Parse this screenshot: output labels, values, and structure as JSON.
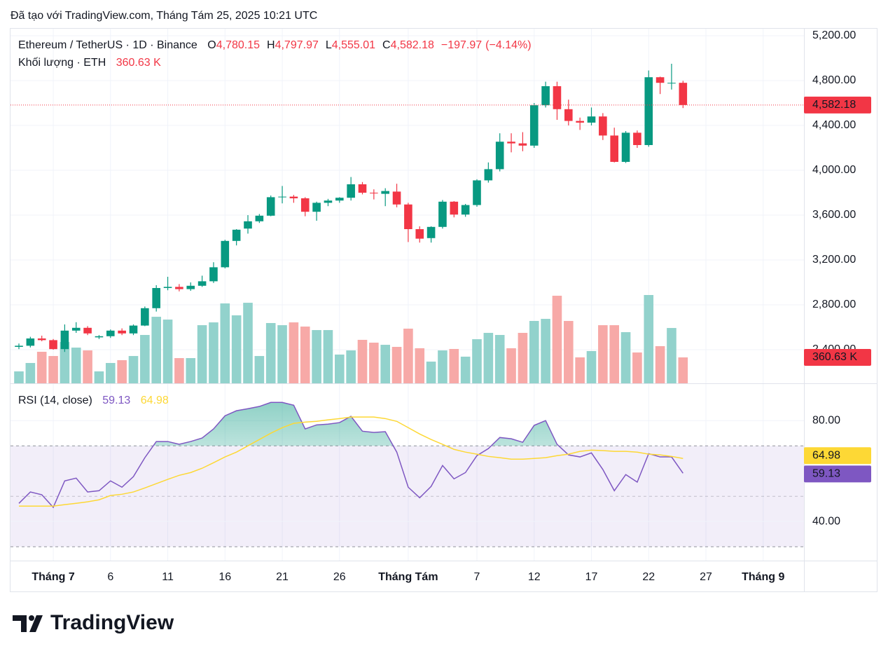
{
  "header": "Đã tạo với TradingView.com, Tháng Tám 25, 2025 10:21 UTC",
  "footer": "TradingView",
  "chart_data": {
    "type": "candlestick",
    "symbol": "Ethereum / TetherUS · 1D · Binance",
    "legend": [
      {
        "key": "O",
        "value": 4780.15,
        "label": "4,780.15"
      },
      {
        "key": "H",
        "value": 4797.97,
        "label": "4,797.97"
      },
      {
        "key": "L",
        "value": 4555.01,
        "label": "4,555.01"
      },
      {
        "key": "C",
        "value": 4582.18,
        "label": "4,582.18"
      }
    ],
    "change": {
      "value": -197.97,
      "label": "−197.97"
    },
    "change_pct": {
      "value": -4.14,
      "label": "(−4.14%)"
    },
    "up_color": "#089981",
    "down_color": "#f23645",
    "dates": [
      "2025-06-28",
      "2025-06-29",
      "2025-06-30",
      "2025-07-01",
      "2025-07-02",
      "2025-07-03",
      "2025-07-04",
      "2025-07-05",
      "2025-07-06",
      "2025-07-07",
      "2025-07-08",
      "2025-07-09",
      "2025-07-10",
      "2025-07-11",
      "2025-07-12",
      "2025-07-13",
      "2025-07-14",
      "2025-07-15",
      "2025-07-16",
      "2025-07-17",
      "2025-07-18",
      "2025-07-19",
      "2025-07-20",
      "2025-07-21",
      "2025-07-22",
      "2025-07-23",
      "2025-07-24",
      "2025-07-25",
      "2025-07-26",
      "2025-07-27",
      "2025-07-28",
      "2025-07-29",
      "2025-07-30",
      "2025-07-31",
      "2025-08-01",
      "2025-08-02",
      "2025-08-03",
      "2025-08-04",
      "2025-08-05",
      "2025-08-06",
      "2025-08-07",
      "2025-08-08",
      "2025-08-09",
      "2025-08-10",
      "2025-08-11",
      "2025-08-12",
      "2025-08-13",
      "2025-08-14",
      "2025-08-15",
      "2025-08-16",
      "2025-08-17",
      "2025-08-18",
      "2025-08-19",
      "2025-08-20",
      "2025-08-21",
      "2025-08-22",
      "2025-08-23",
      "2025-08-24",
      "2025-08-25"
    ],
    "open": [
      2425,
      2435,
      2500,
      2485,
      2405,
      2570,
      2595,
      2510,
      2520,
      2570,
      2545,
      2615,
      2770,
      2950,
      2960,
      2940,
      2970,
      3010,
      3135,
      3370,
      3480,
      3545,
      3595,
      3760,
      3765,
      3750,
      3630,
      3710,
      3730,
      3755,
      3875,
      3800,
      3790,
      3810,
      3695,
      3475,
      3395,
      3495,
      3720,
      3605,
      3690,
      3910,
      4010,
      4255,
      4240,
      4220,
      4580,
      4750,
      4545,
      4440,
      4425,
      4480,
      4310,
      4075,
      4335,
      4225,
      4830,
      4780,
      4780.15
    ],
    "high": [
      2455,
      2515,
      2525,
      2495,
      2625,
      2645,
      2610,
      2530,
      2580,
      2590,
      2625,
      2785,
      2975,
      3050,
      2985,
      3000,
      3060,
      3180,
      3380,
      3475,
      3600,
      3610,
      3775,
      3860,
      3780,
      3760,
      3720,
      3745,
      3760,
      3940,
      3895,
      3830,
      3840,
      3880,
      3710,
      3500,
      3500,
      3735,
      3725,
      3700,
      3920,
      4070,
      4330,
      4330,
      4340,
      4600,
      4790,
      4790,
      4630,
      4470,
      4560,
      4510,
      4380,
      4350,
      4355,
      4890,
      4835,
      4950,
      4797.97
    ],
    "low": [
      2405,
      2420,
      2475,
      2400,
      2380,
      2550,
      2530,
      2495,
      2505,
      2530,
      2530,
      2610,
      2740,
      2930,
      2920,
      2925,
      2960,
      2995,
      3125,
      3330,
      3435,
      3530,
      3590,
      3705,
      3710,
      3590,
      3550,
      3680,
      3710,
      3730,
      3785,
      3740,
      3680,
      3670,
      3360,
      3355,
      3355,
      3480,
      3580,
      3585,
      3675,
      3890,
      3990,
      4160,
      4170,
      4200,
      4560,
      4450,
      4400,
      4360,
      4400,
      4270,
      4070,
      4065,
      4200,
      4210,
      4680,
      4720,
      4555.01
    ],
    "close": [
      2435,
      2500,
      2485,
      2405,
      2570,
      2595,
      2545,
      2520,
      2570,
      2545,
      2615,
      2770,
      2950,
      2960,
      2940,
      2970,
      3010,
      3135,
      3370,
      3470,
      3545,
      3595,
      3760,
      3765,
      3750,
      3630,
      3710,
      3730,
      3755,
      3875,
      3800,
      3795,
      3815,
      3695,
      3475,
      3390,
      3495,
      3720,
      3605,
      3690,
      3910,
      4010,
      4255,
      4240,
      4220,
      4580,
      4750,
      4545,
      4440,
      4425,
      4480,
      4310,
      4075,
      4335,
      4225,
      4830,
      4780,
      4780.15,
      4582.18
    ],
    "ylim": [
      2100,
      5268.75
    ],
    "yticks": [
      {
        "value": 2400,
        "label": "2,400.00"
      },
      {
        "value": 2800,
        "label": "2,800.00"
      },
      {
        "value": 3200,
        "label": "3,200.00"
      },
      {
        "value": 3600,
        "label": "3,600.00"
      },
      {
        "value": 4000,
        "label": "4,000.00"
      },
      {
        "value": 4400,
        "label": "4,400.00"
      },
      {
        "value": 4800,
        "label": "4,800.00"
      },
      {
        "value": 5200,
        "label": "5,200.00"
      }
    ],
    "xticks": [
      {
        "value": "2025-07-01",
        "label": "Tháng 7"
      },
      {
        "value": "2025-07-06",
        "label": "6"
      },
      {
        "value": "2025-07-11",
        "label": "11"
      },
      {
        "value": "2025-07-16",
        "label": "16"
      },
      {
        "value": "2025-07-21",
        "label": "21"
      },
      {
        "value": "2025-07-26",
        "label": "26"
      },
      {
        "value": "2025-08-01",
        "label": "Tháng Tám"
      },
      {
        "value": "2025-08-07",
        "label": "7"
      },
      {
        "value": "2025-08-12",
        "label": "12"
      },
      {
        "value": "2025-08-17",
        "label": "17"
      },
      {
        "value": "2025-08-22",
        "label": "22"
      },
      {
        "value": "2025-08-27",
        "label": "27"
      },
      {
        "value": "2025-09-01",
        "label": "Tháng 9"
      }
    ],
    "grid": true,
    "volume": {
      "name": "Khối lượng · ETH",
      "up_color": "#92d2cc",
      "down_color": "#f7a9a7",
      "values": [
        166,
        283,
        439,
        380,
        575,
        497,
        458,
        166,
        283,
        322,
        380,
        673,
        926,
        887,
        351,
        351,
        809,
        848,
        1112,
        946,
        1121,
        380,
        839,
        809,
        848,
        790,
        741,
        741,
        400,
        458,
        605,
        566,
        536,
        507,
        761,
        488,
        302,
        458,
        478,
        371,
        614,
        702,
        673,
        488,
        702,
        868,
        897,
        1219,
        868,
        361,
        449,
        809,
        809,
        712,
        429,
        1229,
        517,
        770,
        360.63
      ],
      "last_label": "360.63 K"
    },
    "rsi": {
      "type": "line",
      "ylim": [
        24.5,
        94.5
      ],
      "yticks": [
        {
          "value": 80,
          "label": "80.00"
        },
        {
          "value": 40,
          "label": "40.00"
        }
      ],
      "levels": [
        70,
        50,
        30
      ],
      "band_color": "#7e57c2",
      "series": [
        {
          "name": "RSI (14, close)",
          "color": "#7e57c2",
          "values": [
            47.2,
            51.7,
            50.6,
            45.6,
            56.1,
            57.2,
            51.7,
            52.2,
            56.1,
            53.6,
            57.8,
            65.3,
            71.7,
            71.7,
            70.6,
            71.7,
            73.1,
            76.7,
            81.9,
            83.9,
            84.7,
            85.6,
            87.2,
            87.2,
            86.1,
            76.7,
            78.3,
            78.6,
            79.2,
            81.7,
            75.8,
            75.3,
            75.6,
            67.5,
            53.6,
            49.4,
            53.9,
            62.2,
            56.9,
            59.4,
            66.1,
            68.9,
            73.3,
            72.8,
            71.4,
            78.1,
            80,
            70.6,
            66.4,
            65.6,
            67.2,
            60.6,
            52.2,
            58.6,
            55.6,
            66.9,
            65.6,
            65.6,
            59.13
          ]
        },
        {
          "color": "#fdd835",
          "values": [
            46.1,
            46.1,
            46.1,
            46.1,
            46.7,
            47.2,
            47.8,
            48.6,
            50.3,
            50.8,
            51.7,
            53.3,
            55,
            56.7,
            58.3,
            59.4,
            61.1,
            63.3,
            65.6,
            67.5,
            70,
            72.5,
            75,
            77.2,
            78.9,
            79.4,
            79.7,
            80.3,
            80.8,
            81.4,
            81.4,
            81.4,
            80.8,
            79.7,
            77.2,
            74.7,
            72.5,
            70.6,
            68.6,
            67.5,
            66.7,
            65.8,
            65.3,
            64.7,
            64.7,
            65,
            65.3,
            66.1,
            66.7,
            67.8,
            68.3,
            68.1,
            67.8,
            67.8,
            67.5,
            66.7,
            66.4,
            65.8,
            64.98
          ]
        }
      ]
    }
  }
}
